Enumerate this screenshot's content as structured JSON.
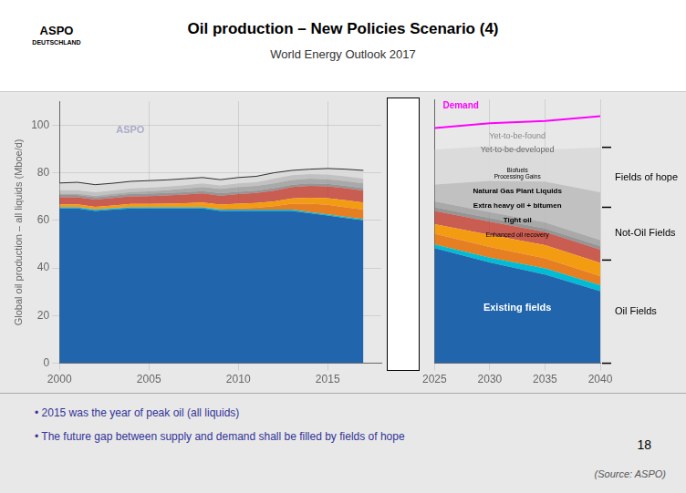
{
  "title": "Oil production – New Policies Scenario (4)",
  "subtitle": "World Energy Outlook 2017",
  "annotations": [
    "ASPO",
    "DEUTSCHLAND",
    "• 2015 was the year of peak oil (all liquids)",
    "• The future gap between supply and demand shall be filled by fields of hope",
    "18",
    "(Source: ASPO)"
  ],
  "chart_data": [
    {
      "type": "area",
      "stacked": true,
      "ylabel": "Global oil production – all liquids (Mboe/d)",
      "x": [
        2000,
        2001,
        2002,
        2003,
        2004,
        2005,
        2006,
        2007,
        2008,
        2009,
        2010,
        2011,
        2012,
        2013,
        2014,
        2015,
        2016,
        2017
      ],
      "series": [
        {
          "color": "#2166ac",
          "values": [
            65,
            65,
            64,
            64.5,
            65,
            65,
            65,
            65,
            65,
            64,
            64,
            64,
            64,
            64,
            63,
            62,
            61,
            60
          ]
        },
        {
          "color": "#00bcd4",
          "values": [
            0.5,
            0.5,
            0.5,
            0.5,
            0.5,
            0.5,
            0.5,
            0.5,
            0.5,
            0.5,
            0.5,
            0.5,
            0.5,
            0.5,
            0.5,
            0.5,
            0.5,
            0.5
          ]
        },
        {
          "color": "#e67e22",
          "values": [
            0.2,
            0.2,
            0.2,
            0.2,
            0.2,
            0.2,
            0.2,
            0.2,
            0.2,
            0.3,
            0.5,
            0.8,
            1.5,
            2.5,
            3.5,
            4.0,
            4.0,
            4.0
          ]
        },
        {
          "color": "#f39c12",
          "values": [
            1.0,
            1.0,
            1.0,
            1.1,
            1.2,
            1.2,
            1.3,
            1.5,
            1.8,
            1.8,
            2.0,
            2.0,
            2.0,
            2.2,
            2.5,
            2.8,
            3.0,
            3.0
          ]
        },
        {
          "color": "#c0392b",
          "values": [
            3.0,
            3.0,
            3.0,
            3.1,
            3.2,
            3.3,
            3.5,
            3.6,
            3.8,
            3.8,
            4.0,
            4.2,
            4.5,
            4.8,
            5.0,
            5.0,
            5.0,
            5.0
          ]
        },
        {
          "color": "#808080",
          "values": [
            1.0,
            1.0,
            1.0,
            1.0,
            1.0,
            1.0,
            1.0,
            1.0,
            1.0,
            1.0,
            1.0,
            1.0,
            1.0,
            1.0,
            1.0,
            1.0,
            1.0,
            1.0
          ]
        },
        {
          "color": "#999999",
          "values": [
            0.5,
            0.5,
            0.6,
            0.7,
            0.8,
            1.0,
            1.2,
            1.5,
            1.7,
            1.8,
            2.0,
            2.0,
            2.0,
            2.0,
            2.0,
            2.0,
            2.0,
            2.0
          ]
        },
        {
          "color": "#bdbdbd",
          "values": [
            1.5,
            1.5,
            1.5,
            1.5,
            1.5,
            1.5,
            1.5,
            1.5,
            1.5,
            1.5,
            1.5,
            1.5,
            2.0,
            2.0,
            2.0,
            2.0,
            2.0,
            2.0
          ]
        },
        {
          "color": "#d9d9d9",
          "values": [
            3.0,
            3.3,
            3.2,
            3.0,
            3.0,
            3.0,
            2.8,
            2.7,
            2.5,
            2.4,
            2.5,
            2.5,
            2.5,
            2.0,
            2.0,
            2.5,
            3.0,
            3.5
          ]
        }
      ],
      "xlim": [
        2000,
        2018
      ],
      "xticks": [
        2000,
        2005,
        2010,
        2015
      ],
      "ylim": [
        0,
        110
      ],
      "yticks": [
        0,
        20,
        40,
        60,
        80,
        100
      ],
      "grid": true,
      "annotations": [
        "ASPO"
      ]
    },
    {
      "type": "area",
      "stacked": true,
      "x": [
        2025,
        2030,
        2035,
        2040
      ],
      "series": [
        {
          "color": "#2166ac",
          "values": [
            48,
            42,
            37,
            30
          ]
        },
        {
          "color": "#00bcd4",
          "values": [
            1.5,
            2.0,
            2.5,
            2.5
          ]
        },
        {
          "color": "#e67e22",
          "values": [
            4.5,
            4.5,
            4.2,
            3.8
          ]
        },
        {
          "color": "#f39c12",
          "values": [
            4.0,
            5.0,
            5.5,
            5.5
          ]
        },
        {
          "color": "#c0392b",
          "values": [
            5.5,
            5.5,
            5.5,
            5.5
          ]
        },
        {
          "color": "#808080",
          "values": [
            1.5,
            1.5,
            1.5,
            1.5
          ]
        },
        {
          "color": "#999999",
          "values": [
            2.5,
            2.5,
            2.5,
            2.5
          ]
        },
        {
          "color": "#bdbdbd",
          "values": [
            7.0,
            13.0,
            17.0,
            20.0
          ]
        },
        {
          "color": "#d9d9d9",
          "values": [
            14.5,
            14.5,
            13.3,
            18.7
          ]
        },
        {
          "type": "line",
          "color": "#ff00ff",
          "values": [
            98,
            100,
            101,
            103
          ]
        }
      ],
      "xlim": [
        2025,
        2040
      ],
      "xticks": [
        2025,
        2030,
        2035,
        2040
      ],
      "ylim": [
        0,
        110
      ],
      "grid": true,
      "tick_labels": "x",
      "annotations": [
        "Existing fields",
        "Enhanced oil recovery",
        "Tight oil",
        "Extra heavy oil + bitumen",
        "Natural Gas Plant Liquids",
        "Biofuels\nProcessing Gains",
        "Yet-to-be-developed",
        "Yet-to-be-found",
        "Demand"
      ],
      "group_bounds": [
        0,
        43,
        65,
        90
      ],
      "group_labels": [
        "Oil Fields",
        "Not-Oil Fields",
        "Fields of hope"
      ]
    }
  ]
}
